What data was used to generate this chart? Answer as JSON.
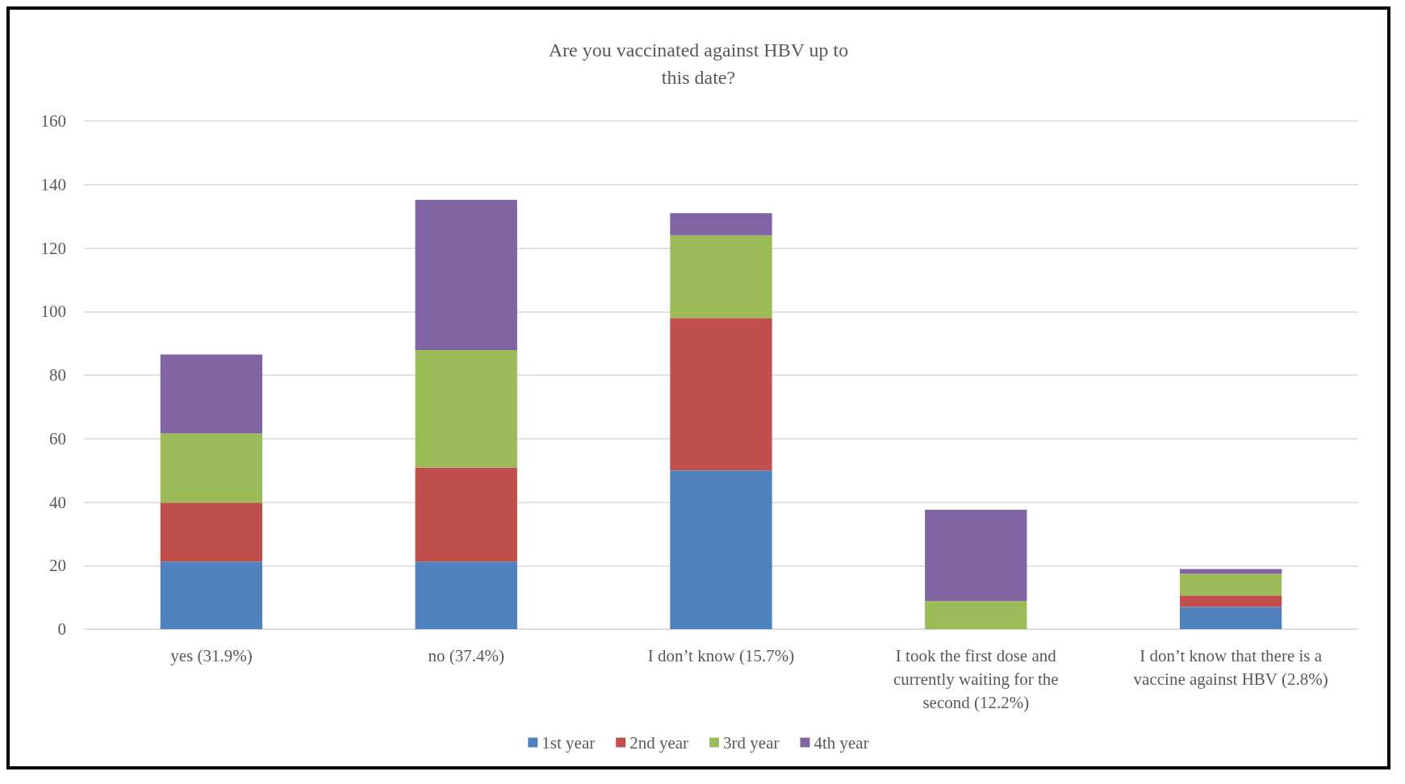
{
  "chart_data": {
    "type": "bar",
    "title": "Are you vaccinated against HBV up to\nthis date?",
    "stacked": true,
    "categories": [
      "yes (31.9%)",
      "no (37.4%)",
      "I don’t know (15.7%)",
      "I took the first dose and\ncurrently waiting for the\nsecond (12.2%)",
      "I don’t know that there is a\nvaccine against HBV (2.8%)"
    ],
    "series": [
      {
        "name": "1st year",
        "color": "#4f81bd",
        "values": [
          21.3,
          21.3,
          50,
          0,
          7
        ]
      },
      {
        "name": "2nd year",
        "color": "#c0504d",
        "values": [
          18.5,
          29.6,
          48,
          0,
          3.6
        ]
      },
      {
        "name": "3rd year",
        "color": "#9bbb59",
        "values": [
          21.8,
          37,
          26,
          8.8,
          6.8
        ]
      },
      {
        "name": "4th year",
        "color": "#8064a2",
        "values": [
          24.9,
          47.3,
          7,
          28.8,
          1.5
        ]
      }
    ],
    "ylim": [
      0,
      160
    ],
    "yticks": [
      0,
      20,
      40,
      60,
      80,
      100,
      120,
      140,
      160
    ],
    "grid": "y",
    "legend": "bottom"
  }
}
